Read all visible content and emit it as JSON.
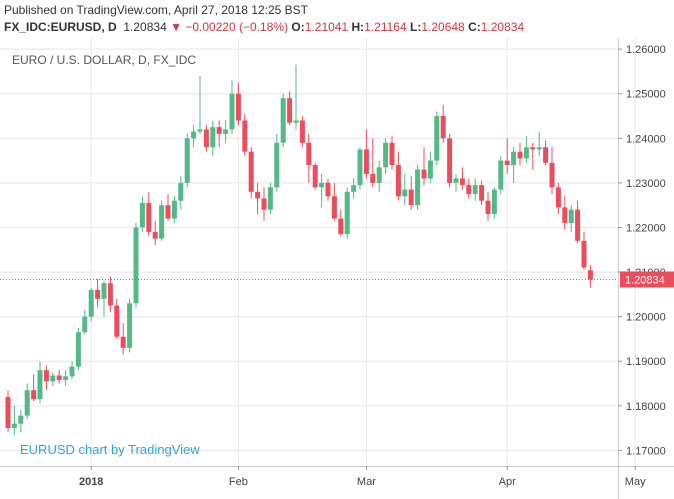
{
  "header": {
    "published": "Published on TradingView.com, April 27, 2018 12:25 BST",
    "symbol": "FX_IDC:EURUSD, D",
    "last": "1.20834",
    "change": "−0.00220 (−0.18%)",
    "o_label": "O:",
    "o_value": "1.21041",
    "h_label": "H:",
    "h_value": "1.21164",
    "l_label": "L:",
    "l_value": "1.20648",
    "c_label": "C:",
    "c_value": "1.20834"
  },
  "chart_data": {
    "type": "candlestick",
    "title": "EURO / U.S. DOLLAR, D, FX_IDC",
    "watermark": "EURUSD chart by TradingView",
    "last_price_label": "1.20834",
    "last_price": 1.20834,
    "ylim": [
      1.1665,
      1.2625
    ],
    "y_ticks": [
      1.17,
      1.18,
      1.19,
      1.2,
      1.21,
      1.22,
      1.23,
      1.24,
      1.25,
      1.26
    ],
    "y_tick_labels": [
      "1.17000",
      "1.18000",
      "1.19000",
      "1.20000",
      "1.21000",
      "1.22000",
      "1.23000",
      "1.24000",
      "1.25000",
      "1.26000"
    ],
    "x_labels": [
      {
        "label": "2018",
        "index": 13
      },
      {
        "label": "Feb",
        "index": 36
      },
      {
        "label": "Mar",
        "index": 56
      },
      {
        "label": "Apr",
        "index": 78
      },
      {
        "label": "May",
        "index": 98
      }
    ],
    "colors": {
      "up": "#53b987",
      "down": "#eb4d5c",
      "grid": "#e8e8e8",
      "price_line": "#eb4d5c"
    },
    "candles": [
      [
        1.182,
        1.1835,
        1.1742,
        1.175
      ],
      [
        1.175,
        1.18,
        1.1735,
        1.176
      ],
      [
        1.176,
        1.179,
        1.174,
        1.1778
      ],
      [
        1.1778,
        1.185,
        1.177,
        1.1835
      ],
      [
        1.1835,
        1.187,
        1.181,
        1.1815
      ],
      [
        1.1815,
        1.19,
        1.1805,
        1.188
      ],
      [
        1.188,
        1.189,
        1.1835,
        1.1855
      ],
      [
        1.1855,
        1.1875,
        1.1845,
        1.1868
      ],
      [
        1.1868,
        1.188,
        1.185,
        1.1858
      ],
      [
        1.1858,
        1.188,
        1.1845,
        1.1866
      ],
      [
        1.1866,
        1.19,
        1.186,
        1.1888
      ],
      [
        1.1888,
        1.1975,
        1.188,
        1.1965
      ],
      [
        1.1965,
        1.2015,
        1.196,
        1.2
      ],
      [
        1.2,
        1.2065,
        1.199,
        1.206
      ],
      [
        1.206,
        1.2085,
        1.202,
        1.204
      ],
      [
        1.204,
        1.208,
        1.2,
        1.2075
      ],
      [
        1.2075,
        1.209,
        1.201,
        1.2025
      ],
      [
        1.2025,
        1.204,
        1.195,
        1.1955
      ],
      [
        1.1955,
        1.1985,
        1.1915,
        1.193
      ],
      [
        1.193,
        1.204,
        1.192,
        1.203
      ],
      [
        1.203,
        1.221,
        1.202,
        1.22
      ],
      [
        1.22,
        1.227,
        1.219,
        1.2255
      ],
      [
        1.2255,
        1.228,
        1.218,
        1.219
      ],
      [
        1.219,
        1.2215,
        1.216,
        1.2175
      ],
      [
        1.2175,
        1.226,
        1.217,
        1.225
      ],
      [
        1.225,
        1.2275,
        1.2215,
        1.222
      ],
      [
        1.222,
        1.227,
        1.221,
        1.226
      ],
      [
        1.226,
        1.2315,
        1.224,
        1.23
      ],
      [
        1.23,
        1.241,
        1.229,
        1.24
      ],
      [
        1.24,
        1.243,
        1.238,
        1.2415
      ],
      [
        1.2415,
        1.254,
        1.241,
        1.242
      ],
      [
        1.242,
        1.243,
        1.237,
        1.238
      ],
      [
        1.238,
        1.244,
        1.236,
        1.2425
      ],
      [
        1.2425,
        1.244,
        1.238,
        1.241
      ],
      [
        1.241,
        1.244,
        1.239,
        1.242
      ],
      [
        1.242,
        1.253,
        1.241,
        1.25
      ],
      [
        1.25,
        1.2525,
        1.243,
        1.244
      ],
      [
        1.244,
        1.2455,
        1.236,
        1.237
      ],
      [
        1.237,
        1.238,
        1.2265,
        1.228
      ],
      [
        1.228,
        1.23,
        1.223,
        1.2265
      ],
      [
        1.2265,
        1.229,
        1.2215,
        1.224
      ],
      [
        1.224,
        1.23,
        1.223,
        1.229
      ],
      [
        1.229,
        1.241,
        1.228,
        1.239
      ],
      [
        1.239,
        1.25,
        1.238,
        1.249
      ],
      [
        1.249,
        1.2505,
        1.243,
        1.2435
      ],
      [
        1.2435,
        1.2565,
        1.242,
        1.244
      ],
      [
        1.244,
        1.245,
        1.238,
        1.239
      ],
      [
        1.239,
        1.241,
        1.23,
        1.234
      ],
      [
        1.234,
        1.2345,
        1.2285,
        1.229
      ],
      [
        1.229,
        1.232,
        1.2245,
        1.23
      ],
      [
        1.23,
        1.231,
        1.226,
        1.227
      ],
      [
        1.227,
        1.23,
        1.2215,
        1.222
      ],
      [
        1.222,
        1.224,
        1.218,
        1.2185
      ],
      [
        1.2185,
        1.229,
        1.2175,
        1.228
      ],
      [
        1.228,
        1.231,
        1.2265,
        1.2295
      ],
      [
        1.2295,
        1.238,
        1.2285,
        1.2375
      ],
      [
        1.2375,
        1.242,
        1.231,
        1.232
      ],
      [
        1.232,
        1.24,
        1.229,
        1.23
      ],
      [
        1.23,
        1.235,
        1.228,
        1.2335
      ],
      [
        1.2335,
        1.24,
        1.232,
        1.239
      ],
      [
        1.239,
        1.2405,
        1.233,
        1.234
      ],
      [
        1.234,
        1.237,
        1.226,
        1.227
      ],
      [
        1.227,
        1.232,
        1.225,
        1.2285
      ],
      [
        1.2285,
        1.2315,
        1.224,
        1.225
      ],
      [
        1.225,
        1.234,
        1.224,
        1.233
      ],
      [
        1.233,
        1.238,
        1.2295,
        1.231
      ],
      [
        1.231,
        1.237,
        1.23,
        1.235
      ],
      [
        1.235,
        1.246,
        1.234,
        1.245
      ],
      [
        1.245,
        1.2475,
        1.239,
        1.24
      ],
      [
        1.24,
        1.241,
        1.229,
        1.23
      ],
      [
        1.23,
        1.232,
        1.228,
        1.231
      ],
      [
        1.231,
        1.2335,
        1.2285,
        1.2295
      ],
      [
        1.2295,
        1.231,
        1.2265,
        1.2275
      ],
      [
        1.2275,
        1.231,
        1.226,
        1.2295
      ],
      [
        1.2295,
        1.2305,
        1.225,
        1.226
      ],
      [
        1.226,
        1.228,
        1.2215,
        1.223
      ],
      [
        1.223,
        1.229,
        1.222,
        1.2285
      ],
      [
        1.2285,
        1.236,
        1.2275,
        1.235
      ],
      [
        1.235,
        1.24,
        1.232,
        1.234
      ],
      [
        1.234,
        1.238,
        1.23,
        1.237
      ],
      [
        1.237,
        1.239,
        1.234,
        1.2355
      ],
      [
        1.2355,
        1.2405,
        1.2345,
        1.238
      ],
      [
        1.238,
        1.239,
        1.233,
        1.2375
      ],
      [
        1.2375,
        1.2415,
        1.236,
        1.238
      ],
      [
        1.238,
        1.2395,
        1.234,
        1.2345
      ],
      [
        1.2345,
        1.238,
        1.2275,
        1.229
      ],
      [
        1.229,
        1.23,
        1.223,
        1.2245
      ],
      [
        1.2245,
        1.227,
        1.2195,
        1.221
      ],
      [
        1.221,
        1.225,
        1.219,
        1.224
      ],
      [
        1.224,
        1.226,
        1.2165,
        1.217
      ],
      [
        1.217,
        1.219,
        1.2105,
        1.211
      ],
      [
        1.2104,
        1.2116,
        1.2065,
        1.2083
      ]
    ]
  }
}
